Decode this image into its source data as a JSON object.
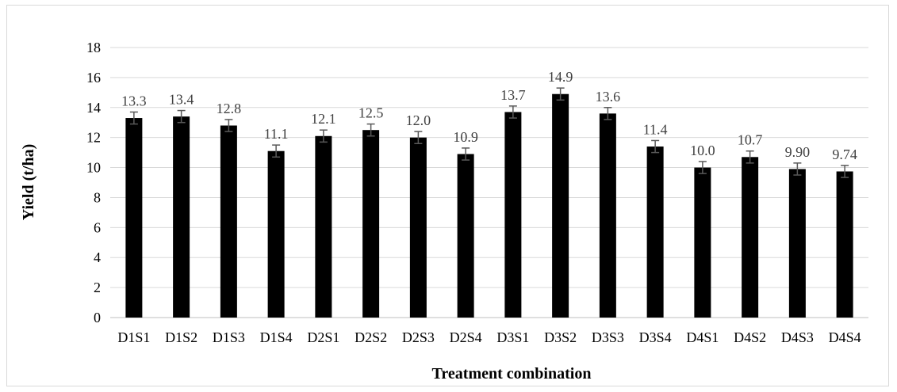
{
  "chart_data": {
    "type": "bar",
    "title": "",
    "xlabel": "Treatment combination",
    "ylabel": "Yield (t/ha)",
    "ylim": [
      0,
      18
    ],
    "yticks": [
      0,
      2,
      4,
      6,
      8,
      10,
      12,
      14,
      16,
      18
    ],
    "ytick_labels": [
      "0",
      "2",
      "4",
      "6",
      "8",
      "10",
      "12",
      "14",
      "16",
      "18"
    ],
    "grid": "horizontal",
    "categories": [
      "D1S1",
      "D1S2",
      "D1S3",
      "D1S4",
      "D2S1",
      "D2S2",
      "D2S3",
      "D2S4",
      "D3S1",
      "D3S2",
      "D3S3",
      "D3S4",
      "D4S1",
      "D4S2",
      "D4S3",
      "D4S4"
    ],
    "values": [
      13.3,
      13.4,
      12.8,
      11.1,
      12.1,
      12.5,
      12.0,
      10.9,
      13.7,
      14.9,
      13.6,
      11.4,
      10.0,
      10.7,
      9.9,
      9.74
    ],
    "value_labels": [
      "13.3",
      "13.4",
      "12.8",
      "11.1",
      "12.1",
      "12.5",
      "12.0",
      "10.9",
      "13.7",
      "14.9",
      "13.6",
      "11.4",
      "10.0",
      "10.7",
      "9.90",
      "9.74"
    ],
    "error": [
      0.4,
      0.4,
      0.4,
      0.4,
      0.4,
      0.4,
      0.4,
      0.4,
      0.4,
      0.4,
      0.4,
      0.4,
      0.4,
      0.4,
      0.4,
      0.4
    ],
    "bar_color": "#000000",
    "grid_color": "#d9d9d9",
    "errorbar_color": "#595959"
  }
}
